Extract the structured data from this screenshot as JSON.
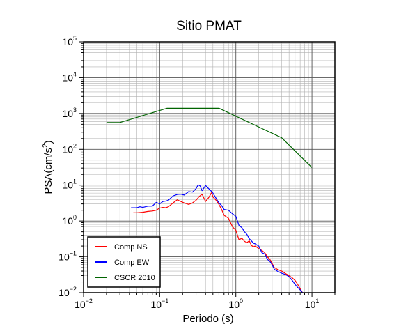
{
  "chart_data": {
    "type": "line",
    "title": "Sitio PMAT",
    "xlabel": "Periodo (s)",
    "ylabel": {
      "base": "PSA(cm/s",
      "sup": "2",
      "end": ")"
    },
    "xscale": "log",
    "yscale": "log",
    "xlim": [
      0.01,
      20
    ],
    "ylim": [
      0.01,
      100000
    ],
    "grid": true,
    "legend_position": "bottom-left",
    "x_ticks": [
      {
        "value": 0.01,
        "base": "10",
        "exp": "−2"
      },
      {
        "value": 0.1,
        "base": "10",
        "exp": "−1"
      },
      {
        "value": 1,
        "base": "10",
        "exp": "0"
      },
      {
        "value": 10,
        "base": "10",
        "exp": "1"
      }
    ],
    "y_ticks": [
      {
        "value": 0.01,
        "base": "10",
        "exp": "−2"
      },
      {
        "value": 0.1,
        "base": "10",
        "exp": "−1"
      },
      {
        "value": 1,
        "base": "10",
        "exp": "0"
      },
      {
        "value": 10,
        "base": "10",
        "exp": "1"
      },
      {
        "value": 100,
        "base": "10",
        "exp": "2"
      },
      {
        "value": 1000,
        "base": "10",
        "exp": "3"
      },
      {
        "value": 10000,
        "base": "10",
        "exp": "4"
      },
      {
        "value": 100000,
        "base": "10",
        "exp": "5"
      }
    ],
    "series": [
      {
        "name": "Comp NS",
        "color": "#ff0000",
        "x": [
          0.045,
          0.05,
          0.06,
          0.07,
          0.08,
          0.09,
          0.1,
          0.11,
          0.12,
          0.13,
          0.15,
          0.17,
          0.19,
          0.21,
          0.24,
          0.27,
          0.3,
          0.33,
          0.36,
          0.4,
          0.44,
          0.48,
          0.5,
          0.55,
          0.6,
          0.65,
          0.7,
          0.8,
          0.9,
          1.0,
          1.1,
          1.2,
          1.3,
          1.4,
          1.5,
          1.6,
          1.7,
          1.8,
          2.0,
          2.2,
          2.4,
          2.6,
          2.8,
          3.0,
          3.2,
          3.5,
          4.0,
          4.5,
          5.0,
          5.5,
          6.0,
          6.5,
          7.0,
          7.5
        ],
        "y": [
          1.7,
          1.7,
          1.75,
          1.85,
          1.9,
          2.0,
          2.3,
          2.4,
          2.35,
          2.5,
          3.2,
          3.9,
          3.5,
          3.2,
          2.9,
          3.2,
          3.8,
          4.8,
          5.6,
          3.5,
          4.5,
          6.2,
          4.7,
          3.8,
          2.9,
          2.1,
          1.45,
          1.2,
          0.7,
          0.55,
          0.3,
          0.33,
          0.27,
          0.25,
          0.28,
          0.21,
          0.19,
          0.2,
          0.17,
          0.15,
          0.13,
          0.1,
          0.085,
          0.065,
          0.05,
          0.045,
          0.04,
          0.034,
          0.03,
          0.026,
          0.022,
          0.017,
          0.013,
          0.01
        ]
      },
      {
        "name": "Comp EW",
        "color": "#0000ff",
        "x": [
          0.042,
          0.05,
          0.055,
          0.06,
          0.07,
          0.08,
          0.09,
          0.1,
          0.11,
          0.12,
          0.13,
          0.15,
          0.17,
          0.19,
          0.21,
          0.24,
          0.27,
          0.3,
          0.32,
          0.34,
          0.36,
          0.4,
          0.44,
          0.47,
          0.5,
          0.55,
          0.6,
          0.65,
          0.7,
          0.8,
          0.9,
          1.0,
          1.1,
          1.2,
          1.3,
          1.4,
          1.5,
          1.6,
          1.7,
          1.8,
          2.0,
          2.2,
          2.4,
          2.6,
          2.8,
          3.0,
          3.2,
          3.5,
          4.0,
          4.5,
          5.0,
          5.5,
          6.0,
          6.5,
          7.0,
          7.5
        ],
        "y": [
          2.35,
          2.35,
          2.5,
          2.4,
          2.6,
          2.6,
          3.3,
          3.0,
          3.5,
          3.6,
          3.8,
          5.0,
          5.5,
          5.6,
          5.3,
          6.6,
          6.4,
          8.0,
          10.2,
          9.5,
          7.0,
          9.8,
          8.0,
          7.0,
          6.0,
          4.3,
          3.2,
          2.7,
          2.1,
          2.0,
          1.6,
          1.35,
          0.75,
          0.65,
          0.5,
          0.42,
          0.32,
          0.28,
          0.24,
          0.23,
          0.2,
          0.13,
          0.12,
          0.085,
          0.075,
          0.06,
          0.045,
          0.04,
          0.035,
          0.032,
          0.028,
          0.022,
          0.017,
          0.014,
          0.012,
          0.01
        ]
      },
      {
        "name": "CSCR 2010",
        "color": "#006400",
        "x": [
          0.02,
          0.03,
          0.125,
          0.6,
          4.0,
          10.0
        ],
        "y": [
          560,
          560,
          1400,
          1400,
          210,
          31
        ]
      }
    ]
  }
}
